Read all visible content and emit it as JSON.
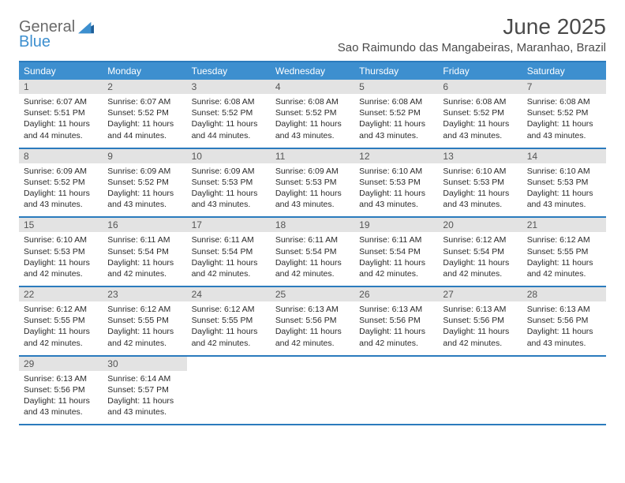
{
  "logo": {
    "text1": "General",
    "text2": "Blue"
  },
  "title": "June 2025",
  "location": "Sao Raimundo das Mangabeiras, Maranhao, Brazil",
  "colors": {
    "header_bg": "#3d8fcf",
    "border": "#2b7bbd",
    "daynum_bg": "#e3e3e3",
    "text": "#2a2a2a"
  },
  "weekdays": [
    "Sunday",
    "Monday",
    "Tuesday",
    "Wednesday",
    "Thursday",
    "Friday",
    "Saturday"
  ],
  "layout": {
    "columns": 7,
    "rows": 5
  },
  "labels": {
    "sunrise_prefix": "Sunrise: ",
    "sunset_prefix": "Sunset: ",
    "daylight_prefix": "Daylight: "
  },
  "weeks": [
    [
      {
        "num": "1",
        "sunrise": "6:07 AM",
        "sunset": "5:51 PM",
        "daylight": "11 hours and 44 minutes."
      },
      {
        "num": "2",
        "sunrise": "6:07 AM",
        "sunset": "5:52 PM",
        "daylight": "11 hours and 44 minutes."
      },
      {
        "num": "3",
        "sunrise": "6:08 AM",
        "sunset": "5:52 PM",
        "daylight": "11 hours and 44 minutes."
      },
      {
        "num": "4",
        "sunrise": "6:08 AM",
        "sunset": "5:52 PM",
        "daylight": "11 hours and 43 minutes."
      },
      {
        "num": "5",
        "sunrise": "6:08 AM",
        "sunset": "5:52 PM",
        "daylight": "11 hours and 43 minutes."
      },
      {
        "num": "6",
        "sunrise": "6:08 AM",
        "sunset": "5:52 PM",
        "daylight": "11 hours and 43 minutes."
      },
      {
        "num": "7",
        "sunrise": "6:08 AM",
        "sunset": "5:52 PM",
        "daylight": "11 hours and 43 minutes."
      }
    ],
    [
      {
        "num": "8",
        "sunrise": "6:09 AM",
        "sunset": "5:52 PM",
        "daylight": "11 hours and 43 minutes."
      },
      {
        "num": "9",
        "sunrise": "6:09 AM",
        "sunset": "5:52 PM",
        "daylight": "11 hours and 43 minutes."
      },
      {
        "num": "10",
        "sunrise": "6:09 AM",
        "sunset": "5:53 PM",
        "daylight": "11 hours and 43 minutes."
      },
      {
        "num": "11",
        "sunrise": "6:09 AM",
        "sunset": "5:53 PM",
        "daylight": "11 hours and 43 minutes."
      },
      {
        "num": "12",
        "sunrise": "6:10 AM",
        "sunset": "5:53 PM",
        "daylight": "11 hours and 43 minutes."
      },
      {
        "num": "13",
        "sunrise": "6:10 AM",
        "sunset": "5:53 PM",
        "daylight": "11 hours and 43 minutes."
      },
      {
        "num": "14",
        "sunrise": "6:10 AM",
        "sunset": "5:53 PM",
        "daylight": "11 hours and 43 minutes."
      }
    ],
    [
      {
        "num": "15",
        "sunrise": "6:10 AM",
        "sunset": "5:53 PM",
        "daylight": "11 hours and 42 minutes."
      },
      {
        "num": "16",
        "sunrise": "6:11 AM",
        "sunset": "5:54 PM",
        "daylight": "11 hours and 42 minutes."
      },
      {
        "num": "17",
        "sunrise": "6:11 AM",
        "sunset": "5:54 PM",
        "daylight": "11 hours and 42 minutes."
      },
      {
        "num": "18",
        "sunrise": "6:11 AM",
        "sunset": "5:54 PM",
        "daylight": "11 hours and 42 minutes."
      },
      {
        "num": "19",
        "sunrise": "6:11 AM",
        "sunset": "5:54 PM",
        "daylight": "11 hours and 42 minutes."
      },
      {
        "num": "20",
        "sunrise": "6:12 AM",
        "sunset": "5:54 PM",
        "daylight": "11 hours and 42 minutes."
      },
      {
        "num": "21",
        "sunrise": "6:12 AM",
        "sunset": "5:55 PM",
        "daylight": "11 hours and 42 minutes."
      }
    ],
    [
      {
        "num": "22",
        "sunrise": "6:12 AM",
        "sunset": "5:55 PM",
        "daylight": "11 hours and 42 minutes."
      },
      {
        "num": "23",
        "sunrise": "6:12 AM",
        "sunset": "5:55 PM",
        "daylight": "11 hours and 42 minutes."
      },
      {
        "num": "24",
        "sunrise": "6:12 AM",
        "sunset": "5:55 PM",
        "daylight": "11 hours and 42 minutes."
      },
      {
        "num": "25",
        "sunrise": "6:13 AM",
        "sunset": "5:56 PM",
        "daylight": "11 hours and 42 minutes."
      },
      {
        "num": "26",
        "sunrise": "6:13 AM",
        "sunset": "5:56 PM",
        "daylight": "11 hours and 42 minutes."
      },
      {
        "num": "27",
        "sunrise": "6:13 AM",
        "sunset": "5:56 PM",
        "daylight": "11 hours and 42 minutes."
      },
      {
        "num": "28",
        "sunrise": "6:13 AM",
        "sunset": "5:56 PM",
        "daylight": "11 hours and 43 minutes."
      }
    ],
    [
      {
        "num": "29",
        "sunrise": "6:13 AM",
        "sunset": "5:56 PM",
        "daylight": "11 hours and 43 minutes."
      },
      {
        "num": "30",
        "sunrise": "6:14 AM",
        "sunset": "5:57 PM",
        "daylight": "11 hours and 43 minutes."
      },
      null,
      null,
      null,
      null,
      null
    ]
  ]
}
